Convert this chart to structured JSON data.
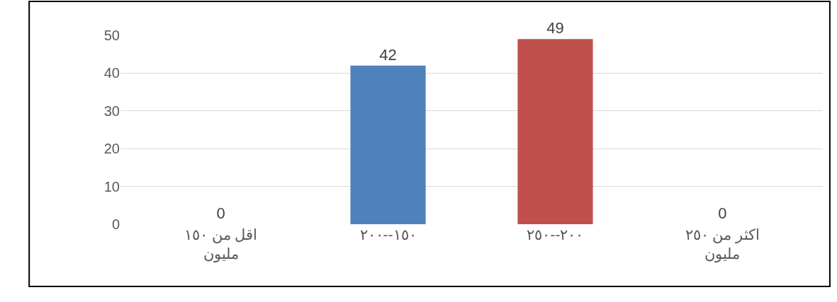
{
  "chart_data": {
    "type": "bar",
    "categories": [
      "اقل من ١٥٠ مليون",
      "١٥٠--٢٠٠",
      "٢٠٠--٢٥٠",
      "اكثر من ٢٥٠ مليون"
    ],
    "values": [
      0,
      42,
      49,
      0
    ],
    "colors": [
      "#4f81bd",
      "#4f81bd",
      "#c0504d",
      "#4f81bd"
    ],
    "ylim": [
      0,
      50
    ],
    "yticks": [
      0,
      10,
      20,
      30,
      40,
      50
    ],
    "grid": "y",
    "data_labels": true,
    "legend": false
  }
}
